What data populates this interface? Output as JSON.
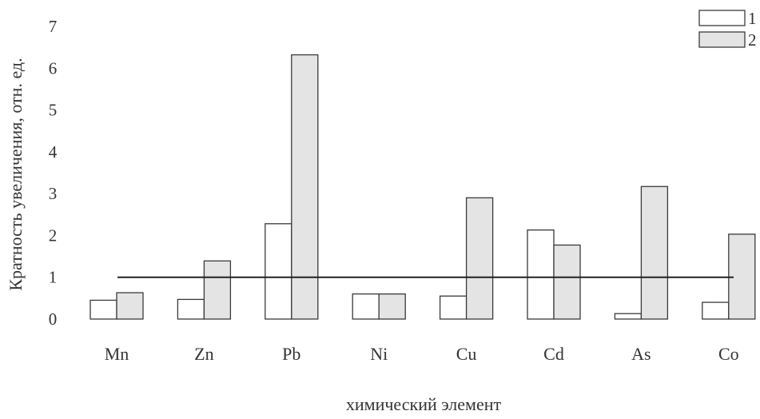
{
  "chart_data": {
    "type": "bar",
    "categories": [
      "Mn",
      "Zn",
      "Pb",
      "Ni",
      "Cu",
      "Cd",
      "As",
      "Co"
    ],
    "series": [
      {
        "name": "1",
        "values": [
          0.45,
          0.47,
          2.28,
          0.6,
          0.55,
          2.13,
          0.13,
          0.4
        ],
        "color": "#ffffff"
      },
      {
        "name": "2",
        "values": [
          0.63,
          1.39,
          6.32,
          0.6,
          2.9,
          1.77,
          3.17,
          2.03
        ],
        "color": "#e4e4e4"
      }
    ],
    "reference_line": 1,
    "xlabel": "химический элемент",
    "ylabel": "Кратность увеличения, отн. ед.",
    "ylim": [
      0,
      7
    ],
    "yticks": [
      "0",
      "1",
      "2",
      "3",
      "4",
      "5",
      "6",
      "7"
    ],
    "legend_position": "top-right",
    "grid": false
  }
}
